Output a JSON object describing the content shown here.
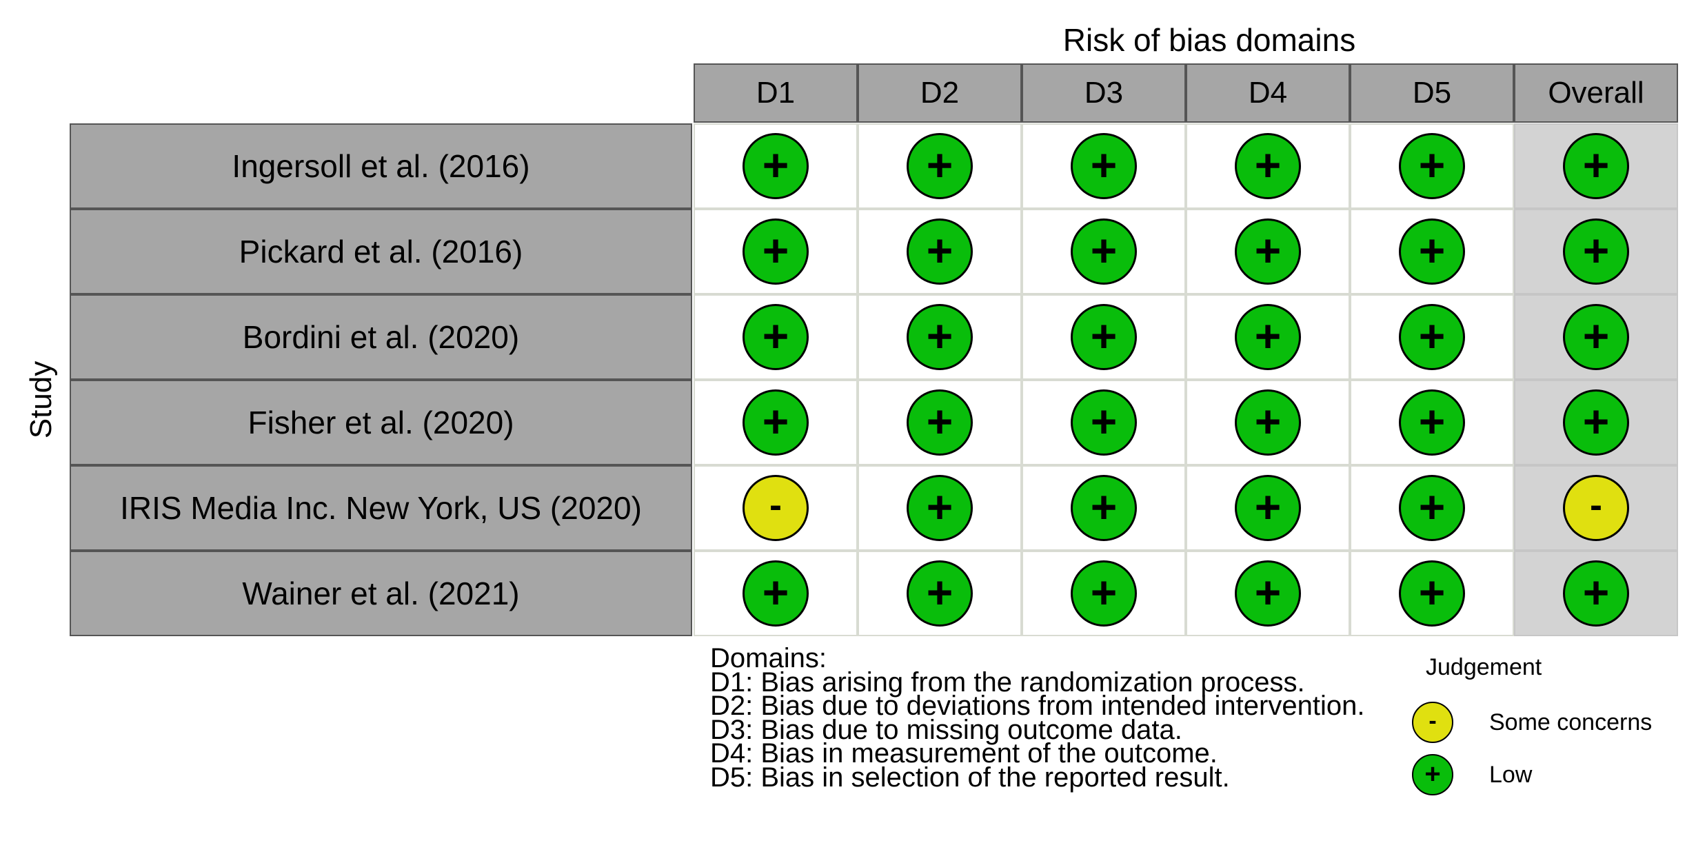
{
  "chart_data": {
    "type": "table",
    "title": "Risk of bias domains",
    "ylabel": "Study",
    "columns": [
      "D1",
      "D2",
      "D3",
      "D4",
      "D5",
      "Overall"
    ],
    "rows": [
      {
        "study": "Ingersoll et al. (2016)",
        "judgements": [
          "low",
          "low",
          "low",
          "low",
          "low",
          "low"
        ]
      },
      {
        "study": "Pickard et al. (2016)",
        "judgements": [
          "low",
          "low",
          "low",
          "low",
          "low",
          "low"
        ]
      },
      {
        "study": "Bordini et al. (2020)",
        "judgements": [
          "low",
          "low",
          "low",
          "low",
          "low",
          "low"
        ]
      },
      {
        "study": "Fisher et al. (2020)",
        "judgements": [
          "low",
          "low",
          "low",
          "low",
          "low",
          "low"
        ]
      },
      {
        "study": "IRIS Media Inc. New York, US (2020)",
        "judgements": [
          "some",
          "low",
          "low",
          "low",
          "low",
          "some"
        ]
      },
      {
        "study": "Wainer et al. (2021)",
        "judgements": [
          "low",
          "low",
          "low",
          "low",
          "low",
          "low"
        ]
      }
    ],
    "domains_title": "Domains:",
    "domains": [
      "D1: Bias arising from the randomization process.",
      "D2: Bias due to deviations from intended intervention.",
      "D3: Bias due to missing outcome data.",
      "D4: Bias in measurement of the outcome.",
      "D5: Bias in selection of the reported result."
    ],
    "legend": {
      "title": "Judgement",
      "items": [
        {
          "key": "some",
          "symbol": "-",
          "label": "Some concerns",
          "color": "#e0e010"
        },
        {
          "key": "low",
          "symbol": "+",
          "label": "Low",
          "color": "#09bd0b"
        }
      ]
    }
  }
}
